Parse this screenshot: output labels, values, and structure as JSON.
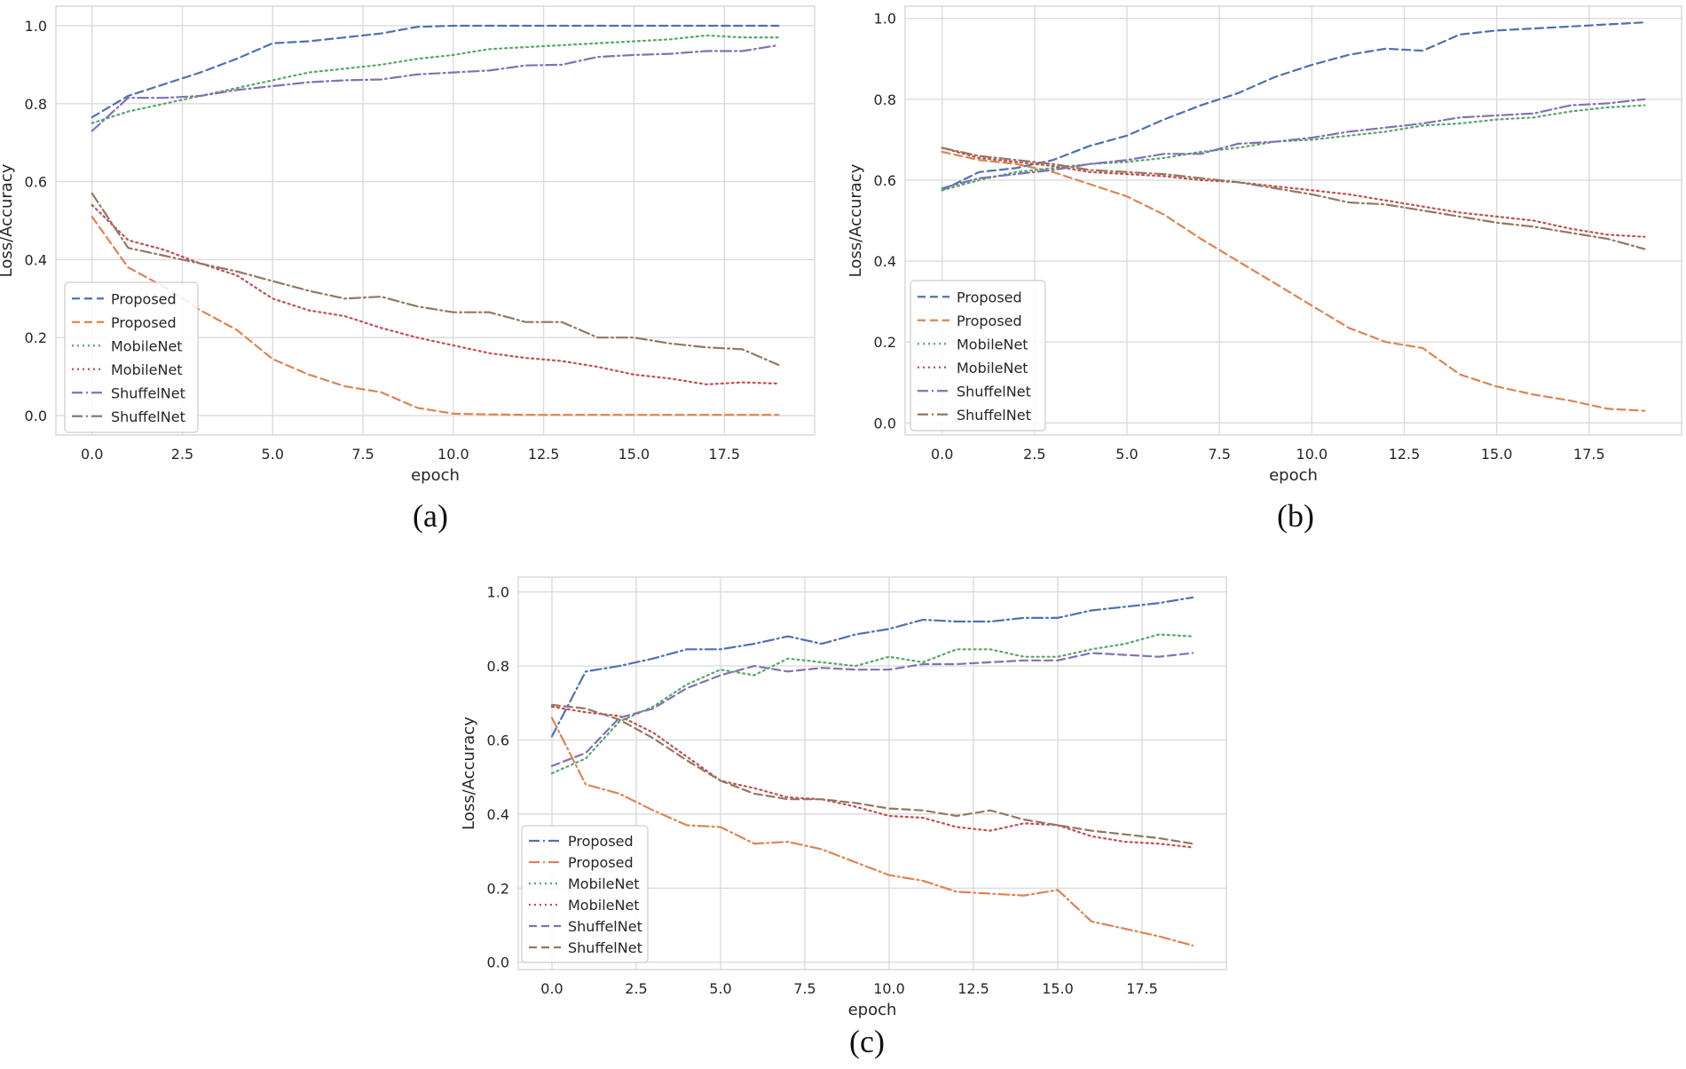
{
  "colors": {
    "blue": "#4c72b0",
    "orange": "#dd8452",
    "green": "#55a868",
    "red": "#c44e52",
    "purple": "#8172b3",
    "brown": "#937860",
    "grid": "#dcdcdc",
    "axis_text": "#262626"
  },
  "chart_data": [
    {
      "id": "a",
      "caption": "(a)",
      "type": "line",
      "xlabel": "epoch",
      "ylabel": "Loss/Accuracy",
      "xlim": [
        -1,
        20
      ],
      "ylim": [
        -0.05,
        1.05
      ],
      "xticks": [
        0,
        2.5,
        5,
        7.5,
        10,
        12.5,
        15,
        17.5
      ],
      "xtick_labels": [
        "0.0",
        "2.5",
        "5.0",
        "7.5",
        "10.0",
        "12.5",
        "15.0",
        "17.5"
      ],
      "yticks": [
        0,
        0.2,
        0.4,
        0.6,
        0.8,
        1.0
      ],
      "ytick_labels": [
        "0.0",
        "0.2",
        "0.4",
        "0.6",
        "0.8",
        "1.0"
      ],
      "legend_position": "center-left",
      "x": [
        0,
        1,
        2,
        3,
        4,
        5,
        6,
        7,
        8,
        9,
        10,
        11,
        12,
        13,
        14,
        15,
        16,
        17,
        18,
        19
      ],
      "series": [
        {
          "name": "Proposed",
          "color": "blue",
          "style": "dashed",
          "values": [
            0.765,
            0.82,
            0.85,
            0.88,
            0.915,
            0.955,
            0.96,
            0.97,
            0.98,
            0.997,
            1.0,
            1.0,
            1.0,
            1.0,
            1.0,
            1.0,
            1.0,
            1.0,
            1.0,
            1.0
          ]
        },
        {
          "name": "Proposed",
          "color": "orange",
          "style": "dashed",
          "values": [
            0.51,
            0.38,
            0.33,
            0.27,
            0.22,
            0.145,
            0.105,
            0.075,
            0.06,
            0.02,
            0.005,
            0.003,
            0.002,
            0.002,
            0.002,
            0.002,
            0.002,
            0.002,
            0.002,
            0.002
          ]
        },
        {
          "name": "MobileNet",
          "color": "green",
          "style": "dotted",
          "values": [
            0.75,
            0.78,
            0.8,
            0.82,
            0.84,
            0.86,
            0.88,
            0.89,
            0.9,
            0.915,
            0.925,
            0.94,
            0.945,
            0.95,
            0.955,
            0.96,
            0.965,
            0.975,
            0.97,
            0.97
          ]
        },
        {
          "name": "MobileNet",
          "color": "red",
          "style": "dotted",
          "values": [
            0.54,
            0.45,
            0.425,
            0.39,
            0.36,
            0.3,
            0.27,
            0.255,
            0.225,
            0.2,
            0.18,
            0.16,
            0.148,
            0.14,
            0.125,
            0.105,
            0.095,
            0.08,
            0.085,
            0.082
          ]
        },
        {
          "name": "ShuffelNet",
          "color": "purple",
          "style": "dashdot",
          "values": [
            0.73,
            0.815,
            0.815,
            0.82,
            0.835,
            0.845,
            0.855,
            0.86,
            0.862,
            0.875,
            0.88,
            0.885,
            0.898,
            0.9,
            0.92,
            0.925,
            0.928,
            0.935,
            0.935,
            0.95
          ]
        },
        {
          "name": "ShuffelNet",
          "color": "brown",
          "style": "dashdot",
          "values": [
            0.57,
            0.43,
            0.41,
            0.39,
            0.37,
            0.345,
            0.32,
            0.3,
            0.305,
            0.28,
            0.265,
            0.265,
            0.24,
            0.24,
            0.2,
            0.2,
            0.185,
            0.175,
            0.17,
            0.13
          ]
        }
      ]
    },
    {
      "id": "b",
      "caption": "(b)",
      "type": "line",
      "xlabel": "epoch",
      "ylabel": "Loss/Accuracy",
      "xlim": [
        -1,
        20
      ],
      "ylim": [
        -0.03,
        1.03
      ],
      "xticks": [
        0,
        2.5,
        5,
        7.5,
        10,
        12.5,
        15,
        17.5
      ],
      "xtick_labels": [
        "0.0",
        "2.5",
        "5.0",
        "7.5",
        "10.0",
        "12.5",
        "15.0",
        "17.5"
      ],
      "yticks": [
        0,
        0.2,
        0.4,
        0.6,
        0.8,
        1.0
      ],
      "ytick_labels": [
        "0.0",
        "0.2",
        "0.4",
        "0.6",
        "0.8",
        "1.0"
      ],
      "legend_position": "lower-left",
      "x": [
        0,
        1,
        2,
        3,
        4,
        5,
        6,
        7,
        8,
        9,
        10,
        11,
        12,
        13,
        14,
        15,
        16,
        17,
        18,
        19
      ],
      "series": [
        {
          "name": "Proposed",
          "color": "blue",
          "style": "dashed",
          "values": [
            0.575,
            0.62,
            0.63,
            0.65,
            0.685,
            0.71,
            0.75,
            0.785,
            0.815,
            0.855,
            0.885,
            0.91,
            0.925,
            0.92,
            0.96,
            0.97,
            0.975,
            0.98,
            0.985,
            0.99
          ]
        },
        {
          "name": "Proposed",
          "color": "orange",
          "style": "dashed",
          "values": [
            0.67,
            0.65,
            0.64,
            0.62,
            0.59,
            0.56,
            0.515,
            0.455,
            0.4,
            0.345,
            0.29,
            0.235,
            0.2,
            0.185,
            0.12,
            0.09,
            0.07,
            0.055,
            0.035,
            0.03
          ]
        },
        {
          "name": "MobileNet",
          "color": "green",
          "style": "dotted",
          "values": [
            0.575,
            0.6,
            0.62,
            0.63,
            0.64,
            0.645,
            0.655,
            0.67,
            0.68,
            0.695,
            0.7,
            0.71,
            0.72,
            0.735,
            0.74,
            0.75,
            0.755,
            0.77,
            0.78,
            0.785
          ]
        },
        {
          "name": "MobileNet",
          "color": "red",
          "style": "dotted",
          "values": [
            0.68,
            0.655,
            0.645,
            0.635,
            0.62,
            0.615,
            0.61,
            0.6,
            0.595,
            0.585,
            0.575,
            0.565,
            0.55,
            0.535,
            0.52,
            0.51,
            0.5,
            0.48,
            0.465,
            0.46
          ]
        },
        {
          "name": "ShuffelNet",
          "color": "purple",
          "style": "dashdot",
          "values": [
            0.58,
            0.605,
            0.615,
            0.625,
            0.64,
            0.65,
            0.665,
            0.665,
            0.69,
            0.695,
            0.705,
            0.72,
            0.73,
            0.74,
            0.755,
            0.76,
            0.765,
            0.785,
            0.79,
            0.8
          ]
        },
        {
          "name": "ShuffelNet",
          "color": "brown",
          "style": "dashdot",
          "values": [
            0.68,
            0.66,
            0.65,
            0.64,
            0.625,
            0.62,
            0.615,
            0.605,
            0.595,
            0.58,
            0.565,
            0.545,
            0.54,
            0.525,
            0.51,
            0.495,
            0.485,
            0.47,
            0.455,
            0.43
          ]
        }
      ]
    },
    {
      "id": "c",
      "caption": "(c)",
      "type": "line",
      "xlabel": "epoch",
      "ylabel": "Loss/Accuracy",
      "xlim": [
        -1,
        20
      ],
      "ylim": [
        -0.02,
        1.04
      ],
      "xticks": [
        0,
        2.5,
        5,
        7.5,
        10,
        12.5,
        15,
        17.5
      ],
      "xtick_labels": [
        "0.0",
        "2.5",
        "5.0",
        "7.5",
        "10.0",
        "12.5",
        "15.0",
        "17.5"
      ],
      "yticks": [
        0,
        0.2,
        0.4,
        0.6,
        0.8,
        1.0
      ],
      "ytick_labels": [
        "0.0",
        "0.2",
        "0.4",
        "0.6",
        "0.8",
        "1.0"
      ],
      "legend_position": "lower-left",
      "x": [
        0,
        1,
        2,
        3,
        4,
        5,
        6,
        7,
        8,
        9,
        10,
        11,
        12,
        13,
        14,
        15,
        16,
        17,
        18,
        19
      ],
      "series": [
        {
          "name": "Proposed",
          "color": "blue",
          "style": "dashdot",
          "values": [
            0.61,
            0.785,
            0.8,
            0.82,
            0.845,
            0.845,
            0.86,
            0.88,
            0.86,
            0.885,
            0.9,
            0.925,
            0.92,
            0.92,
            0.93,
            0.93,
            0.95,
            0.96,
            0.97,
            0.985
          ]
        },
        {
          "name": "Proposed",
          "color": "orange",
          "style": "dashdot",
          "values": [
            0.66,
            0.48,
            0.455,
            0.41,
            0.37,
            0.365,
            0.32,
            0.325,
            0.305,
            0.27,
            0.235,
            0.22,
            0.19,
            0.185,
            0.18,
            0.195,
            0.11,
            0.09,
            0.07,
            0.045
          ]
        },
        {
          "name": "MobileNet",
          "color": "green",
          "style": "dotted",
          "values": [
            0.51,
            0.55,
            0.65,
            0.69,
            0.75,
            0.79,
            0.775,
            0.82,
            0.81,
            0.8,
            0.825,
            0.81,
            0.845,
            0.845,
            0.825,
            0.825,
            0.845,
            0.86,
            0.885,
            0.88
          ]
        },
        {
          "name": "MobileNet",
          "color": "red",
          "style": "dotted",
          "values": [
            0.69,
            0.675,
            0.665,
            0.62,
            0.555,
            0.49,
            0.47,
            0.445,
            0.44,
            0.42,
            0.395,
            0.39,
            0.365,
            0.355,
            0.375,
            0.37,
            0.34,
            0.325,
            0.32,
            0.31
          ]
        },
        {
          "name": "ShuffelNet",
          "color": "purple",
          "style": "dashed",
          "values": [
            0.53,
            0.565,
            0.66,
            0.685,
            0.74,
            0.775,
            0.8,
            0.785,
            0.795,
            0.79,
            0.79,
            0.805,
            0.805,
            0.81,
            0.815,
            0.815,
            0.835,
            0.83,
            0.825,
            0.835
          ]
        },
        {
          "name": "ShuffelNet",
          "color": "brown",
          "style": "dashed",
          "values": [
            0.695,
            0.685,
            0.655,
            0.605,
            0.545,
            0.49,
            0.455,
            0.44,
            0.44,
            0.43,
            0.415,
            0.41,
            0.395,
            0.41,
            0.385,
            0.37,
            0.355,
            0.345,
            0.335,
            0.32
          ]
        }
      ]
    }
  ]
}
